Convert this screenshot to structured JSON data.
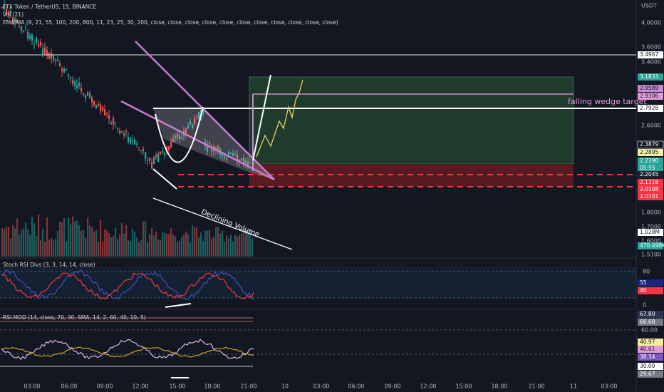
{
  "header": {
    "symbol": "FTX Token / TetherUS, 15, BINANCE",
    "volume": "Vol (21)",
    "ema": "EMA/MA (9, 21, 55, 100, 200, 800, 11, 23, 25, 30, 200, close, close, close, close, close, close, close, close, close, close, close)",
    "currency": "USDT"
  },
  "price_axis": [
    "4.0000",
    "3.6000",
    "3.4000",
    "2.6000",
    "1.8000",
    "1.7000",
    "1.6000",
    "1.5100"
  ],
  "price_tags": [
    "3.4967",
    "3.1833",
    "2.9589",
    "2.9306",
    "2.7928",
    "2.3879",
    "2.2895",
    "2.2390",
    "05:55",
    "2.2045",
    "2.1116",
    "2.0108",
    "2.0101",
    "1.028M",
    "470.498K"
  ],
  "annotations": {
    "target": "falling wedge target",
    "volume": "Declining Volume"
  },
  "stoch": {
    "title": "Stoch RSI Divs (3, 3, 14, 14, close)",
    "axis": [
      "80",
      "0"
    ],
    "tags": [
      "55",
      "40"
    ]
  },
  "rsi": {
    "title": "RSI MOD (14, close, 70, 30, SMA, 14, 2, 60, 40, 10, 5)",
    "axis": [
      "60.00"
    ],
    "tags": [
      "67.80",
      "66.68",
      "40.97",
      "40.61",
      "38.34",
      "30.00",
      "29.67"
    ]
  },
  "time_axis": [
    "03:00",
    "06:00",
    "09:00",
    "12:00",
    "15:00",
    "18:00",
    "21:00",
    "10",
    "03:00",
    "06:00",
    "09:00",
    "12:00",
    "15:00",
    "18:00",
    "21:00",
    "11",
    "03:00"
  ]
}
